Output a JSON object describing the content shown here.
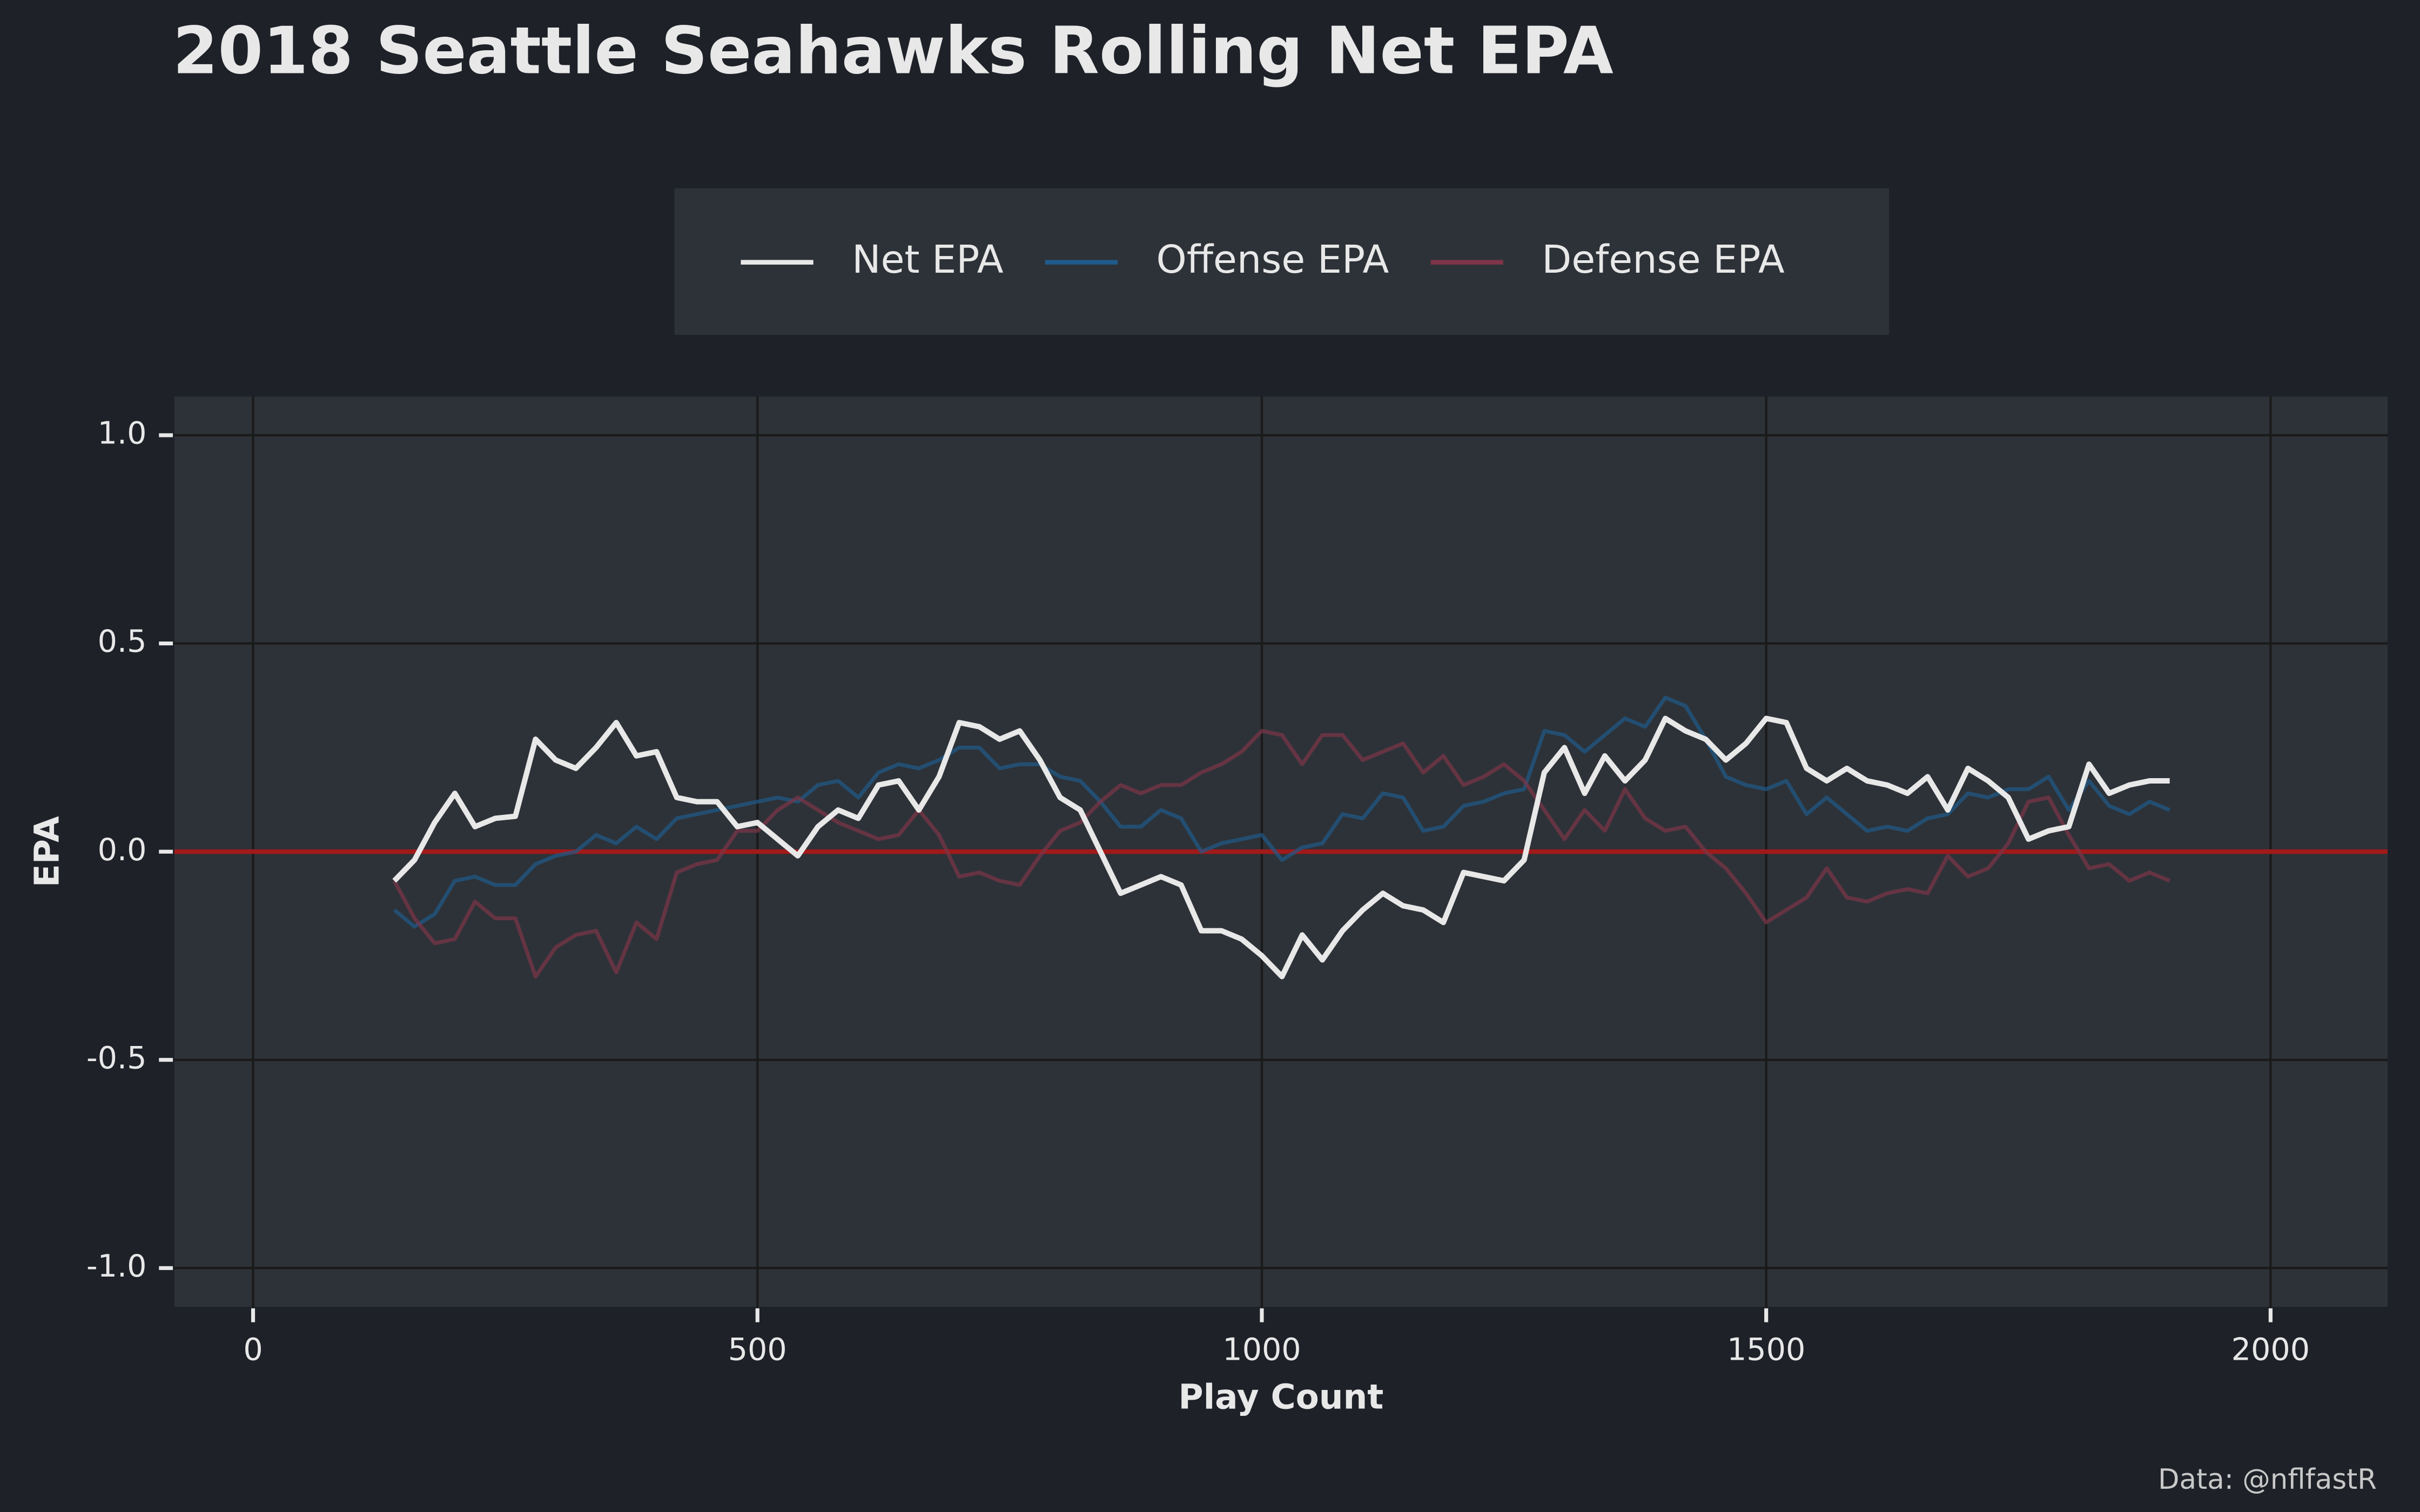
{
  "chart_data": {
    "type": "line",
    "title": "2018 Seattle Seahawks Rolling Net EPA",
    "x_label": "Play Count",
    "y_label": "EPA",
    "caption": "Data: @nflfastR",
    "xlim": [
      -78,
      2116
    ],
    "ylim": [
      -1.093,
      1.093
    ],
    "xticks": [
      0,
      500,
      1000,
      1500,
      2000
    ],
    "yticks": [
      {
        "value": -1,
        "label": "-1.0"
      },
      {
        "value": -0.5,
        "label": "-0.5"
      },
      {
        "value": 0,
        "label": "0.0"
      },
      {
        "value": 0.5,
        "label": "0.5"
      },
      {
        "value": 1,
        "label": "1.0"
      }
    ],
    "grid": true,
    "hline": {
      "value": 0,
      "color": "#a01a1a"
    },
    "x": [
      140,
      160,
      180,
      200,
      220,
      240,
      260,
      280,
      300,
      320,
      340,
      360,
      380,
      400,
      420,
      440,
      460,
      480,
      500,
      520,
      540,
      560,
      580,
      600,
      620,
      640,
      660,
      680,
      700,
      720,
      740,
      760,
      780,
      800,
      820,
      840,
      860,
      880,
      900,
      920,
      940,
      960,
      980,
      1000,
      1020,
      1040,
      1060,
      1080,
      1100,
      1120,
      1140,
      1160,
      1180,
      1200,
      1220,
      1240,
      1260,
      1280,
      1300,
      1320,
      1340,
      1360,
      1380,
      1400,
      1420,
      1440,
      1460,
      1480,
      1500,
      1520,
      1540,
      1560,
      1580,
      1600,
      1620,
      1640,
      1660,
      1680,
      1700,
      1720,
      1740,
      1760,
      1780,
      1800,
      1820,
      1840,
      1860,
      1880,
      1900
    ],
    "series": [
      {
        "name": "Offense EPA",
        "color": "#1f5a8a",
        "values": [
          -0.14,
          -0.18,
          -0.15,
          -0.07,
          -0.06,
          -0.08,
          -0.08,
          -0.03,
          -0.01,
          0.0,
          0.04,
          0.02,
          0.06,
          0.03,
          0.08,
          0.09,
          0.1,
          0.11,
          0.12,
          0.13,
          0.12,
          0.16,
          0.17,
          0.13,
          0.19,
          0.21,
          0.2,
          0.22,
          0.25,
          0.25,
          0.2,
          0.21,
          0.21,
          0.18,
          0.17,
          0.12,
          0.06,
          0.06,
          0.1,
          0.08,
          0.0,
          0.02,
          0.03,
          0.04,
          -0.02,
          0.01,
          0.02,
          0.09,
          0.08,
          0.14,
          0.13,
          0.05,
          0.06,
          0.11,
          0.12,
          0.14,
          0.15,
          0.29,
          0.28,
          0.24,
          0.28,
          0.32,
          0.3,
          0.37,
          0.35,
          0.27,
          0.18,
          0.16,
          0.15,
          0.17,
          0.09,
          0.13,
          0.09,
          0.05,
          0.06,
          0.05,
          0.08,
          0.09,
          0.14,
          0.13,
          0.15,
          0.15,
          0.18,
          0.1,
          0.17,
          0.11,
          0.09,
          0.12,
          0.1
        ]
      },
      {
        "name": "Defense EPA",
        "color": "#7e3548",
        "values": [
          -0.07,
          -0.16,
          -0.22,
          -0.21,
          -0.12,
          -0.16,
          -0.16,
          -0.3,
          -0.23,
          -0.2,
          -0.19,
          -0.29,
          -0.17,
          -0.21,
          -0.05,
          -0.03,
          -0.02,
          0.05,
          0.05,
          0.1,
          0.13,
          0.1,
          0.07,
          0.05,
          0.03,
          0.04,
          0.1,
          0.04,
          -0.06,
          -0.05,
          -0.07,
          -0.08,
          -0.01,
          0.05,
          0.07,
          0.12,
          0.16,
          0.14,
          0.16,
          0.16,
          0.19,
          0.21,
          0.24,
          0.29,
          0.28,
          0.21,
          0.28,
          0.28,
          0.22,
          0.24,
          0.26,
          0.19,
          0.23,
          0.16,
          0.18,
          0.21,
          0.17,
          0.1,
          0.03,
          0.1,
          0.05,
          0.15,
          0.08,
          0.05,
          0.06,
          0.0,
          -0.04,
          -0.1,
          -0.17,
          -0.14,
          -0.11,
          -0.04,
          -0.11,
          -0.12,
          -0.1,
          -0.09,
          -0.1,
          -0.01,
          -0.06,
          -0.04,
          0.02,
          0.12,
          0.13,
          0.04,
          -0.04,
          -0.03,
          -0.07,
          -0.05,
          -0.07
        ]
      },
      {
        "name": "Net EPA",
        "color": "#e8e8e8",
        "values": [
          -0.07,
          -0.02,
          0.07,
          0.14,
          0.06,
          0.08,
          0.085,
          0.27,
          0.22,
          0.2,
          0.25,
          0.31,
          0.23,
          0.24,
          0.13,
          0.12,
          0.12,
          0.06,
          0.07,
          0.03,
          -0.01,
          0.06,
          0.1,
          0.08,
          0.16,
          0.17,
          0.1,
          0.18,
          0.31,
          0.3,
          0.27,
          0.29,
          0.22,
          0.13,
          0.1,
          0.0,
          -0.1,
          -0.08,
          -0.06,
          -0.08,
          -0.19,
          -0.19,
          -0.21,
          -0.25,
          -0.3,
          -0.2,
          -0.26,
          -0.19,
          -0.14,
          -0.1,
          -0.13,
          -0.14,
          -0.17,
          -0.05,
          -0.06,
          -0.07,
          -0.02,
          0.19,
          0.25,
          0.14,
          0.23,
          0.17,
          0.22,
          0.32,
          0.29,
          0.27,
          0.22,
          0.26,
          0.32,
          0.31,
          0.2,
          0.17,
          0.2,
          0.17,
          0.16,
          0.14,
          0.18,
          0.1,
          0.2,
          0.17,
          0.13,
          0.03,
          0.05,
          0.06,
          0.21,
          0.14,
          0.16,
          0.17,
          0.17
        ]
      }
    ],
    "legend_order": [
      2,
      0,
      1
    ],
    "legend_position": "top"
  }
}
